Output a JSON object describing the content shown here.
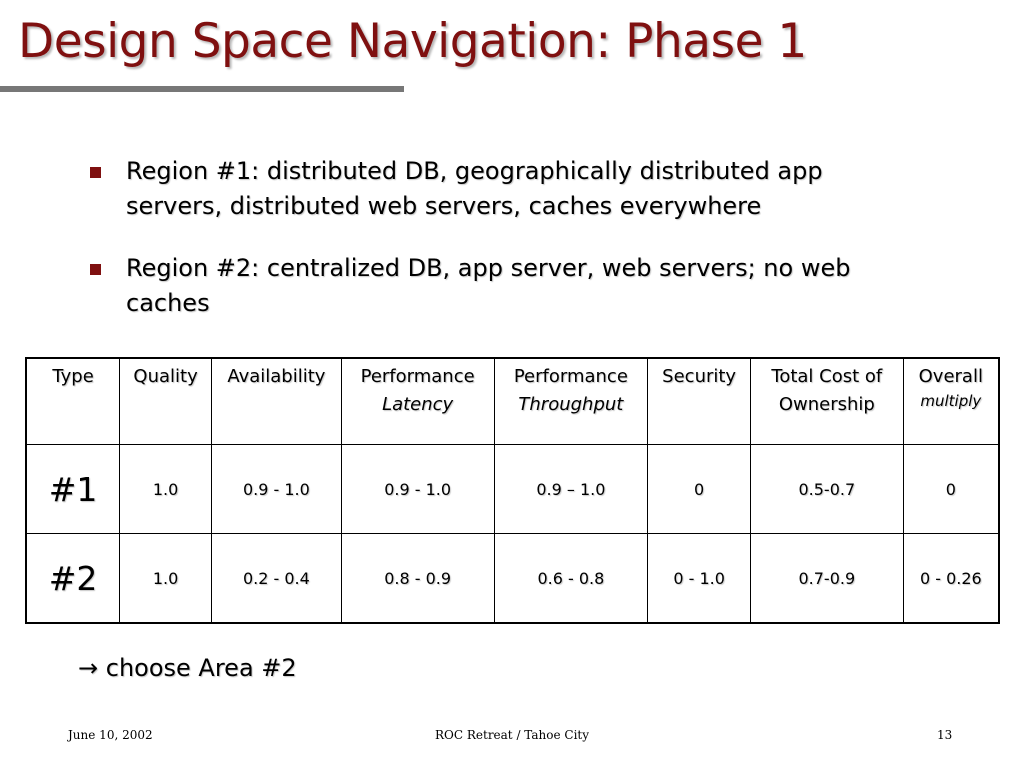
{
  "slide": {
    "title": "Design Space Navigation: Phase 1",
    "bullets": [
      "Region #1: distributed DB, geographically distributed app servers, distributed web servers, caches everywhere",
      "Region #2: centralized DB, app server, web servers; no web caches"
    ],
    "table": {
      "headers": [
        {
          "main": "Type",
          "sub": ""
        },
        {
          "main": "Quality",
          "sub": ""
        },
        {
          "main": "Availability",
          "sub": ""
        },
        {
          "main": "Performance",
          "sub": "Latency"
        },
        {
          "main": "Performance",
          "sub": "Throughput"
        },
        {
          "main": "Security",
          "sub": ""
        },
        {
          "main": "Total Cost of Ownership",
          "sub": ""
        },
        {
          "main": "Overall",
          "sub": "multiply"
        }
      ],
      "rows": [
        [
          "#1",
          "1.0",
          "0.9 - 1.0",
          "0.9 - 1.0",
          "0.9 – 1.0",
          "0",
          "0.5-0.7",
          "0"
        ],
        [
          "#2",
          "1.0",
          "0.2 - 0.4",
          "0.8 - 0.9",
          "0.6 - 0.8",
          "0 - 1.0",
          "0.7-0.9",
          "0 - 0.26"
        ]
      ]
    },
    "conclusion": {
      "arrow": "→",
      "text": "choose Area #2"
    },
    "footer": {
      "date": "June 10, 2002",
      "center": "ROC Retreat / Tahoe City",
      "page": "13"
    },
    "colors": {
      "title": "#7f1010",
      "bullet": "#7f1010",
      "rule": "#777777"
    }
  }
}
